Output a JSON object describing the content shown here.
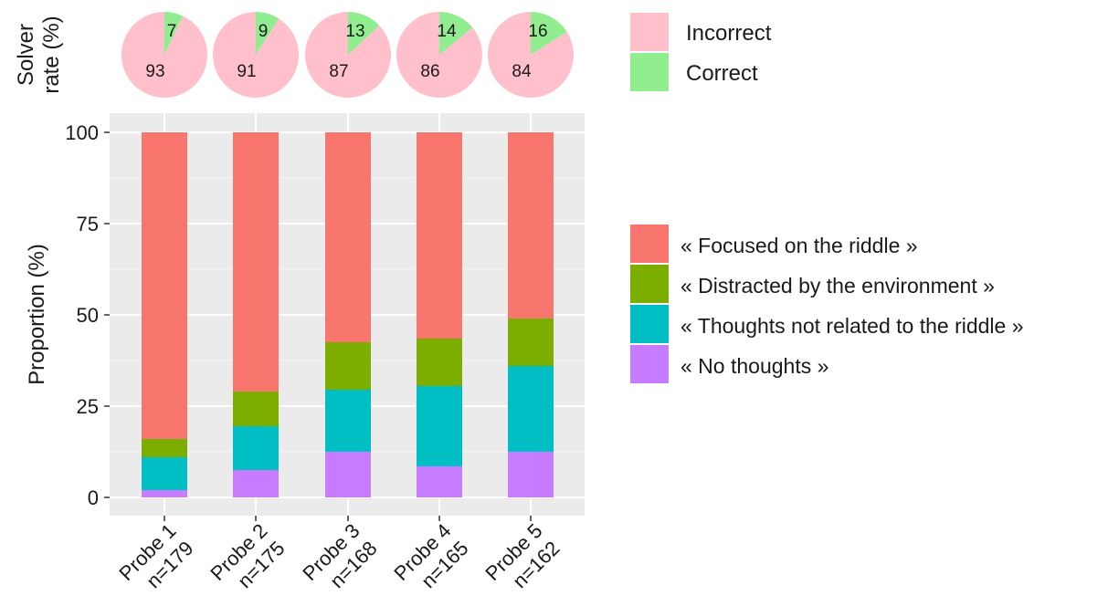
{
  "chart_data": [
    {
      "type": "pie",
      "ylabel_lines": [
        "Solver",
        "rate (%)"
      ],
      "categories": [
        "Probe 1",
        "Probe 2",
        "Probe 3",
        "Probe 4",
        "Probe 5"
      ],
      "series": [
        {
          "name": "Incorrect",
          "color": "#ffc0cb",
          "values": [
            93,
            91,
            87,
            86,
            84
          ]
        },
        {
          "name": "Correct",
          "color": "#90ee90",
          "values": [
            7,
            9,
            13,
            14,
            16
          ]
        }
      ],
      "legend": [
        "Incorrect",
        "Correct"
      ],
      "legend_position": "right"
    },
    {
      "type": "bar",
      "stacked": true,
      "categories": [
        "Probe 1",
        "Probe 2",
        "Probe 3",
        "Probe 4",
        "Probe 5"
      ],
      "category_n": [
        "n=179",
        "n=175",
        "n=168",
        "n=165",
        "n=162"
      ],
      "ylabel": "Proportion (%)",
      "ylim": [
        0,
        100
      ],
      "yticks": [
        0,
        25,
        50,
        75,
        100
      ],
      "grid": true,
      "series": [
        {
          "name": "« No thoughts »",
          "color": "#c77cff",
          "values": [
            2,
            7.5,
            12.5,
            8.5,
            12.5
          ]
        },
        {
          "name": "« Thoughts not related to the riddle »",
          "color": "#00bfc4",
          "values": [
            9,
            12,
            17,
            22,
            23.5
          ]
        },
        {
          "name": "« Distracted by the environment »",
          "color": "#7cae00",
          "values": [
            5,
            9.5,
            13,
            13,
            13
          ]
        },
        {
          "name": "« Focused on the riddle »",
          "color": "#f8766d",
          "values": [
            84,
            71,
            57.5,
            56.5,
            51
          ]
        }
      ],
      "legend": [
        "« Focused on the riddle »",
        "« Distracted by the environment »",
        "« Thoughts not related to the riddle »",
        "« No thoughts »"
      ],
      "legend_position": "right"
    }
  ]
}
